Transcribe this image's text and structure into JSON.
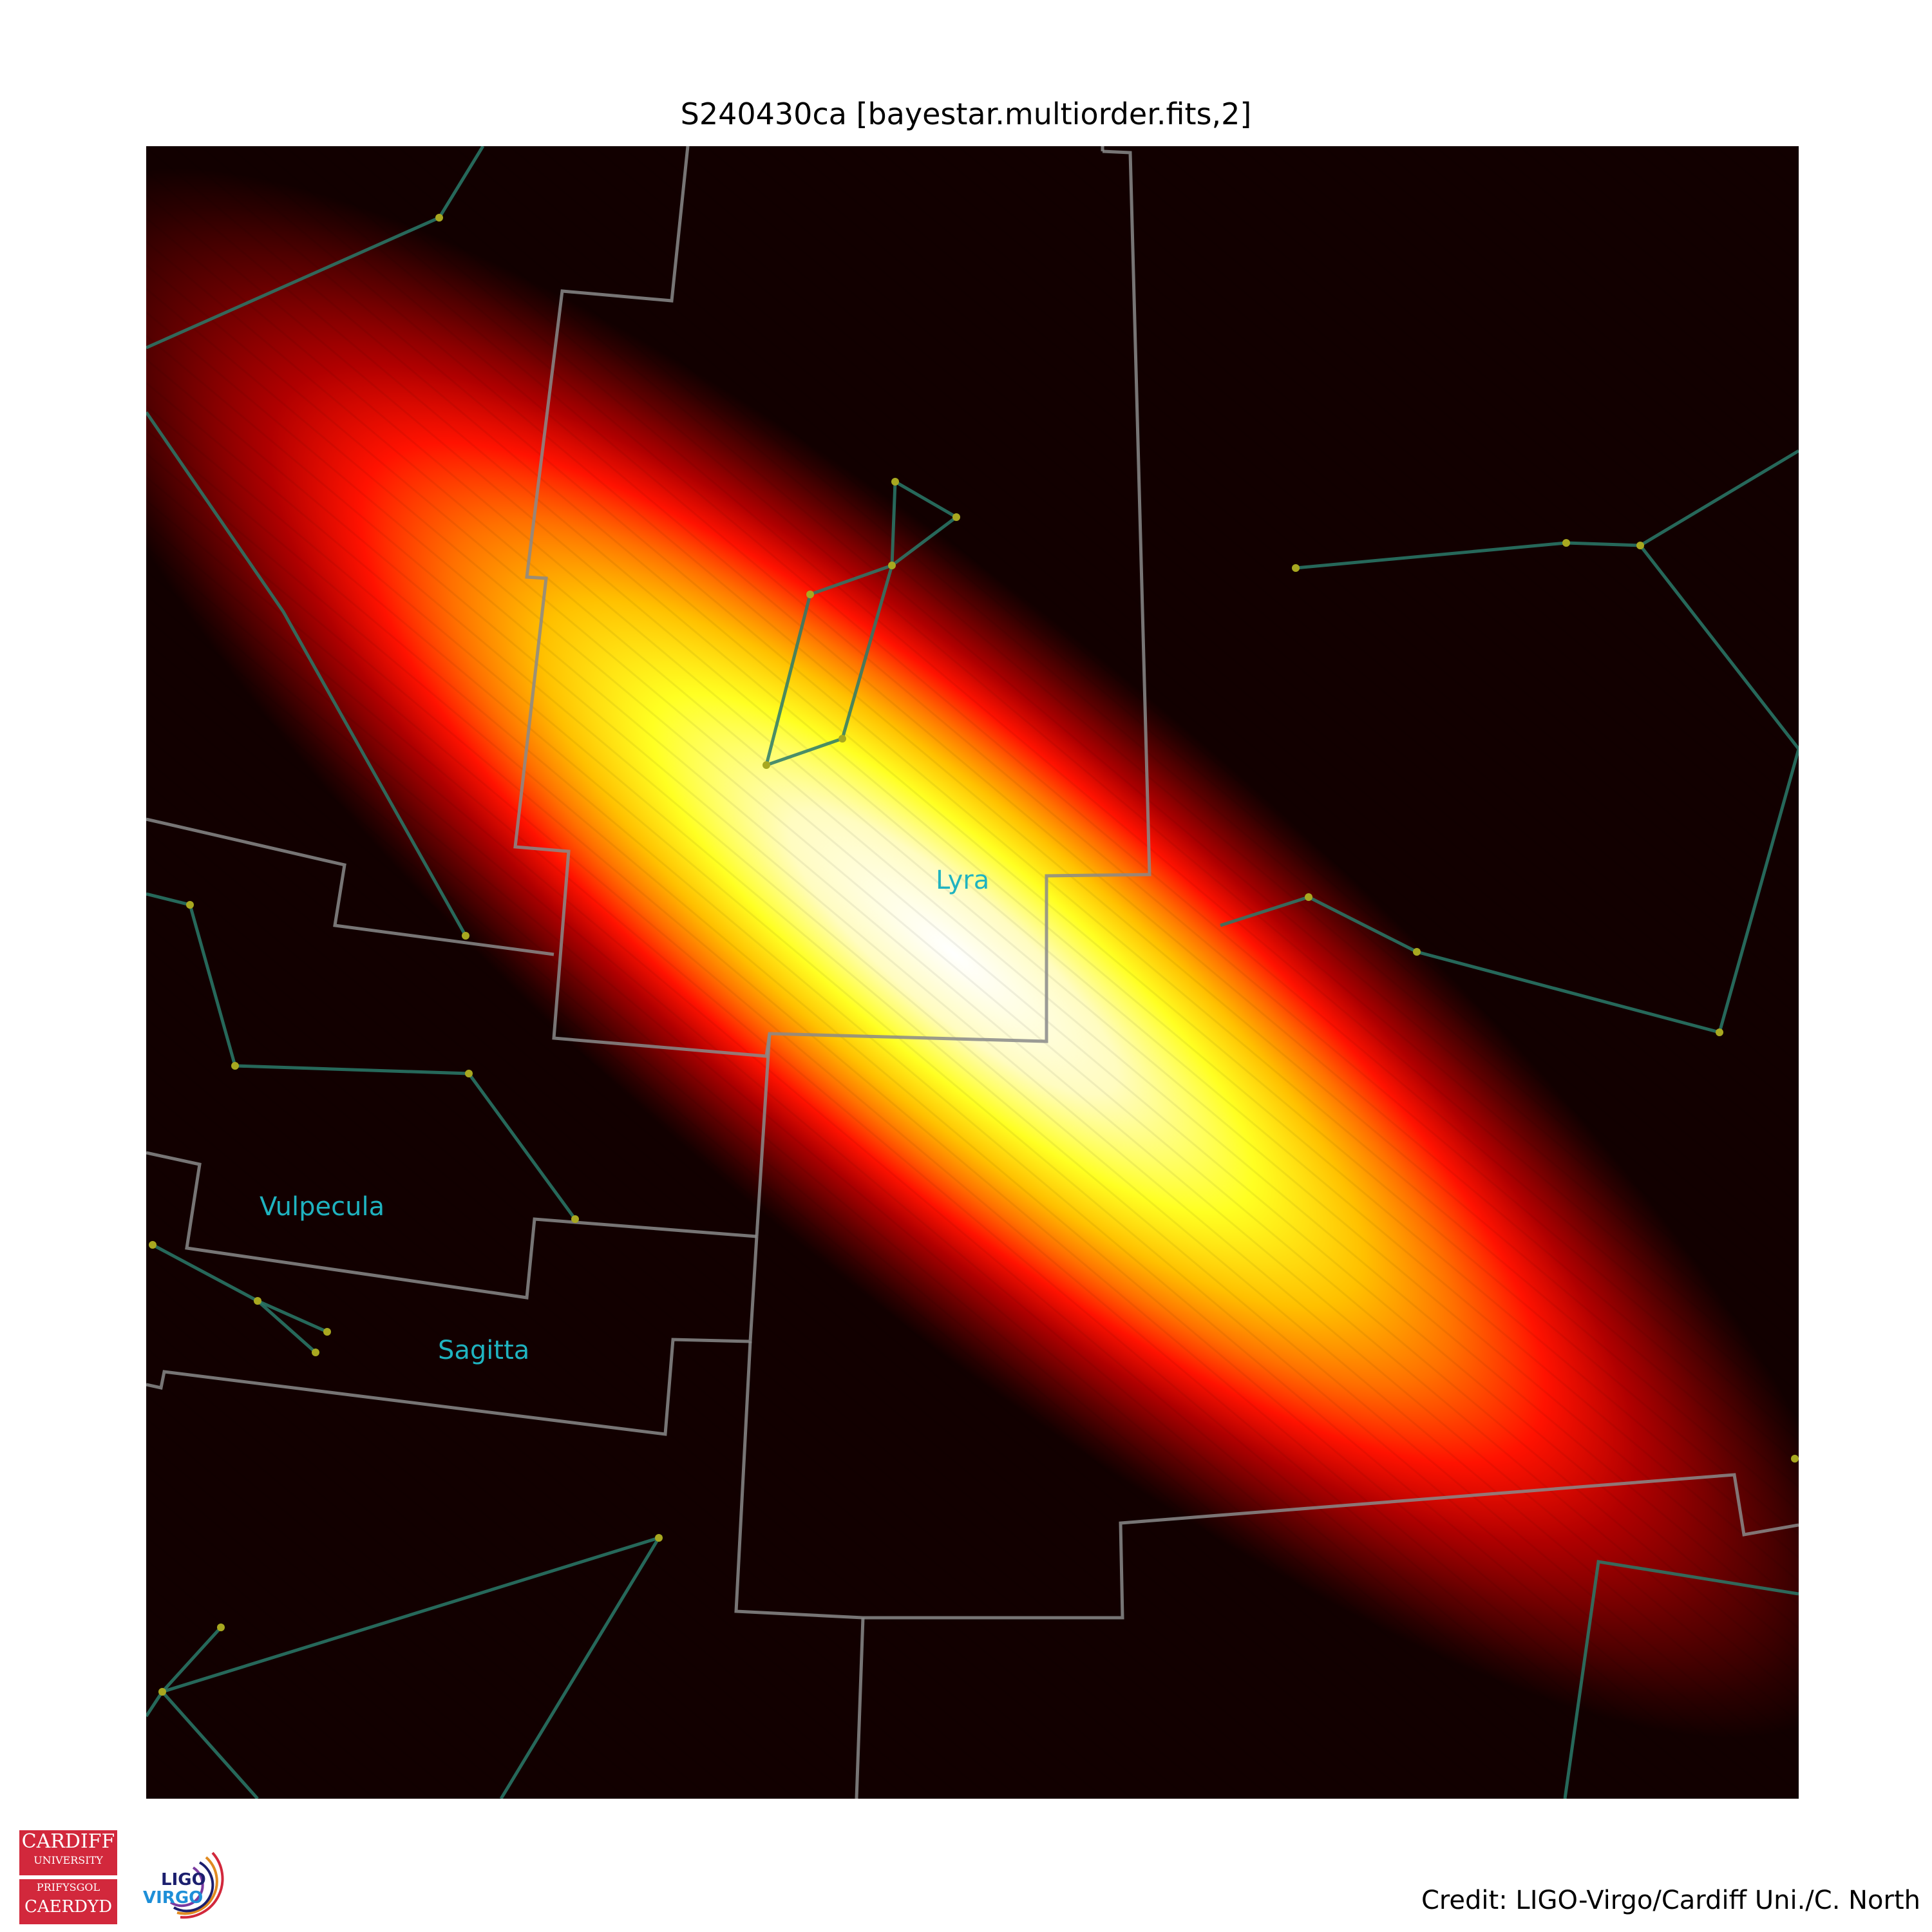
{
  "title": "S240430ca [bayestar.multiorder.fits,2]",
  "credit": "Credit: LIGO-Virgo/Cardiff Uni./C. North",
  "constellations": [
    {
      "id": "lyra",
      "label": "Lyra"
    },
    {
      "id": "vulpecula",
      "label": "Vulpecula"
    },
    {
      "id": "sagitta",
      "label": "Sagitta"
    }
  ],
  "logos": {
    "cardiff": {
      "line1": "CARDIFF",
      "line2": "UNIVERSITY",
      "line3": "PRIFYSGOL",
      "line4": "CAERDYD"
    },
    "ligo_virgo": {
      "ligo": "LIGO",
      "virgo": "VIRGO"
    }
  },
  "colors": {
    "colormap": "cylon / hot",
    "boundary": "#8a8a8a",
    "constellation_line": "#1e6e6e",
    "star": "#a8a820",
    "label": "#1fb3c0"
  }
}
